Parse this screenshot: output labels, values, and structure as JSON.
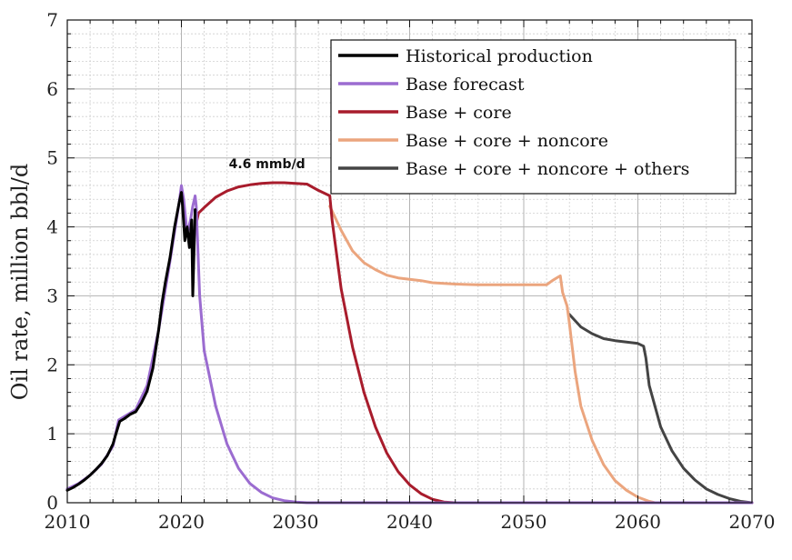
{
  "chart_data": {
    "type": "line",
    "title": "",
    "xlabel": "",
    "ylabel": "Oil rate, million bbl/d",
    "xlim": [
      2010,
      2070
    ],
    "ylim": [
      0,
      7
    ],
    "xticks": [
      2010,
      2020,
      2030,
      2040,
      2050,
      2060,
      2070
    ],
    "yticks": [
      0,
      1,
      2,
      3,
      4,
      5,
      6,
      7
    ],
    "grid": true,
    "legend_position": "top-right",
    "annotations": [
      {
        "text": "4.6 mmb/d",
        "x": 2027.5,
        "y": 4.85
      }
    ],
    "series": [
      {
        "name": "Base + core + noncore + others",
        "color": "#444444",
        "points": [
          [
            2054.0,
            2.73
          ],
          [
            2055.0,
            2.55
          ],
          [
            2056.0,
            2.45
          ],
          [
            2057.0,
            2.38
          ],
          [
            2058.0,
            2.35
          ],
          [
            2059.0,
            2.33
          ],
          [
            2060.0,
            2.31
          ],
          [
            2060.5,
            2.27
          ],
          [
            2060.7,
            2.1
          ],
          [
            2061.0,
            1.7
          ],
          [
            2062.0,
            1.1
          ],
          [
            2063.0,
            0.75
          ],
          [
            2064.0,
            0.5
          ],
          [
            2065.0,
            0.33
          ],
          [
            2066.0,
            0.2
          ],
          [
            2067.0,
            0.12
          ],
          [
            2068.0,
            0.06
          ],
          [
            2069.0,
            0.02
          ],
          [
            2070.0,
            0.0
          ]
        ]
      },
      {
        "name": "Base + core + noncore",
        "color": "#eba57e",
        "points": [
          [
            2033.0,
            4.3
          ],
          [
            2034.0,
            3.95
          ],
          [
            2035.0,
            3.65
          ],
          [
            2036.0,
            3.48
          ],
          [
            2037.0,
            3.38
          ],
          [
            2038.0,
            3.3
          ],
          [
            2039.0,
            3.26
          ],
          [
            2040.0,
            3.24
          ],
          [
            2041.0,
            3.22
          ],
          [
            2042.0,
            3.19
          ],
          [
            2044.0,
            3.17
          ],
          [
            2046.0,
            3.16
          ],
          [
            2048.0,
            3.16
          ],
          [
            2050.0,
            3.16
          ],
          [
            2052.0,
            3.16
          ],
          [
            2052.5,
            3.22
          ],
          [
            2053.0,
            3.27
          ],
          [
            2053.2,
            3.29
          ],
          [
            2053.4,
            3.05
          ],
          [
            2053.8,
            2.85
          ],
          [
            2054.0,
            2.6
          ],
          [
            2054.5,
            1.9
          ],
          [
            2055.0,
            1.4
          ],
          [
            2056.0,
            0.9
          ],
          [
            2057.0,
            0.55
          ],
          [
            2058.0,
            0.32
          ],
          [
            2059.0,
            0.18
          ],
          [
            2060.0,
            0.08
          ],
          [
            2061.0,
            0.02
          ],
          [
            2061.5,
            0.0
          ]
        ]
      },
      {
        "name": "Base + core",
        "color": "#a81c2c",
        "points": [
          [
            2021.3,
            4.05
          ],
          [
            2021.5,
            4.2
          ],
          [
            2022.0,
            4.28
          ],
          [
            2023.0,
            4.43
          ],
          [
            2024.0,
            4.52
          ],
          [
            2025.0,
            4.58
          ],
          [
            2026.0,
            4.61
          ],
          [
            2027.0,
            4.63
          ],
          [
            2028.0,
            4.64
          ],
          [
            2029.0,
            4.64
          ],
          [
            2030.0,
            4.63
          ],
          [
            2031.0,
            4.62
          ],
          [
            2032.0,
            4.53
          ],
          [
            2032.5,
            4.49
          ],
          [
            2033.0,
            4.45
          ],
          [
            2033.2,
            4.1
          ],
          [
            2034.0,
            3.1
          ],
          [
            2035.0,
            2.25
          ],
          [
            2036.0,
            1.6
          ],
          [
            2037.0,
            1.1
          ],
          [
            2038.0,
            0.72
          ],
          [
            2039.0,
            0.45
          ],
          [
            2040.0,
            0.26
          ],
          [
            2041.0,
            0.13
          ],
          [
            2042.0,
            0.05
          ],
          [
            2043.0,
            0.01
          ],
          [
            2044.0,
            0.0
          ],
          [
            2070.0,
            0.0
          ]
        ]
      },
      {
        "name": "Base forecast",
        "color": "#9b6cd0",
        "points": [
          [
            2010.0,
            0.2
          ],
          [
            2011.0,
            0.28
          ],
          [
            2012.0,
            0.4
          ],
          [
            2013.0,
            0.56
          ],
          [
            2014.0,
            0.82
          ],
          [
            2014.5,
            1.2
          ],
          [
            2015.0,
            1.25
          ],
          [
            2016.0,
            1.35
          ],
          [
            2017.0,
            1.7
          ],
          [
            2018.0,
            2.5
          ],
          [
            2019.0,
            3.5
          ],
          [
            2019.8,
            4.35
          ],
          [
            2020.0,
            4.6
          ],
          [
            2020.2,
            4.4
          ],
          [
            2020.5,
            3.9
          ],
          [
            2020.8,
            4.1
          ],
          [
            2021.0,
            4.3
          ],
          [
            2021.2,
            4.45
          ],
          [
            2021.3,
            4.3
          ],
          [
            2021.6,
            3.0
          ],
          [
            2022.0,
            2.2
          ],
          [
            2023.0,
            1.4
          ],
          [
            2024.0,
            0.85
          ],
          [
            2025.0,
            0.5
          ],
          [
            2026.0,
            0.28
          ],
          [
            2027.0,
            0.15
          ],
          [
            2028.0,
            0.07
          ],
          [
            2029.0,
            0.03
          ],
          [
            2030.0,
            0.01
          ],
          [
            2031.0,
            0.0
          ],
          [
            2070.0,
            0.0
          ]
        ]
      },
      {
        "name": "Historical production",
        "color": "#000000",
        "points": [
          [
            2010.0,
            0.18
          ],
          [
            2010.5,
            0.22
          ],
          [
            2011.0,
            0.27
          ],
          [
            2011.5,
            0.33
          ],
          [
            2012.0,
            0.4
          ],
          [
            2012.5,
            0.48
          ],
          [
            2013.0,
            0.57
          ],
          [
            2013.5,
            0.68
          ],
          [
            2014.0,
            0.85
          ],
          [
            2014.3,
            1.02
          ],
          [
            2014.6,
            1.18
          ],
          [
            2015.0,
            1.22
          ],
          [
            2015.5,
            1.28
          ],
          [
            2016.0,
            1.32
          ],
          [
            2016.5,
            1.45
          ],
          [
            2017.0,
            1.62
          ],
          [
            2017.5,
            1.95
          ],
          [
            2018.0,
            2.5
          ],
          [
            2018.3,
            2.9
          ],
          [
            2018.6,
            3.2
          ],
          [
            2019.0,
            3.55
          ],
          [
            2019.4,
            4.0
          ],
          [
            2019.8,
            4.35
          ],
          [
            2020.0,
            4.5
          ],
          [
            2020.1,
            4.3
          ],
          [
            2020.3,
            3.8
          ],
          [
            2020.5,
            4.0
          ],
          [
            2020.7,
            3.7
          ],
          [
            2020.9,
            4.1
          ],
          [
            2021.0,
            3.0
          ],
          [
            2021.2,
            4.25
          ]
        ]
      }
    ]
  }
}
